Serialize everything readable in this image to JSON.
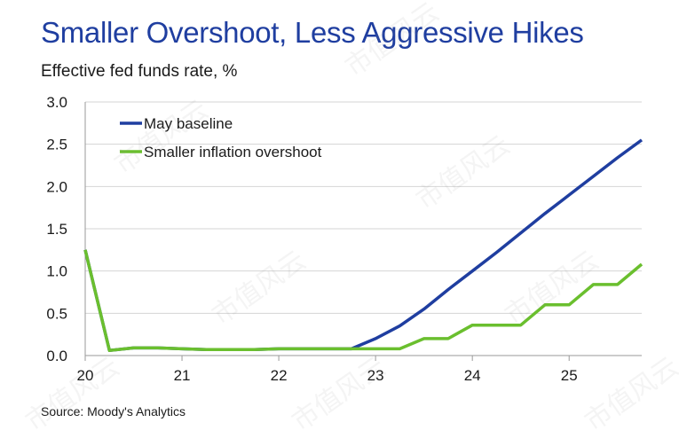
{
  "header": {
    "title": "Smaller Overshoot, Less Aggressive Hikes",
    "subtitle": "Effective fed funds rate, %"
  },
  "footer": {
    "source": "Source: Moody's Analytics"
  },
  "watermark": "市值风云",
  "chart_data": {
    "type": "line",
    "title": "Smaller Overshoot, Less Aggressive Hikes",
    "ylabel": "Effective fed funds rate, %",
    "xlabel": "",
    "xlim": [
      20,
      25.75
    ],
    "ylim": [
      0,
      3.0
    ],
    "x_ticks": [
      "20",
      "21",
      "22",
      "23",
      "24",
      "25"
    ],
    "y_ticks": [
      "0.0",
      "0.5",
      "1.0",
      "1.5",
      "2.0",
      "2.5",
      "3.0"
    ],
    "grid": "horizontal",
    "legend": "top-left",
    "colors": {
      "May baseline": "#1f3ea0",
      "Smaller inflation overshoot": "#6abf2e"
    },
    "series": [
      {
        "name": "May baseline",
        "points": [
          [
            20.0,
            1.25
          ],
          [
            20.25,
            0.06
          ],
          [
            20.5,
            0.09
          ],
          [
            20.75,
            0.09
          ],
          [
            21.0,
            0.08
          ],
          [
            21.25,
            0.07
          ],
          [
            21.5,
            0.07
          ],
          [
            21.75,
            0.07
          ],
          [
            22.0,
            0.08
          ],
          [
            22.25,
            0.08
          ],
          [
            22.5,
            0.08
          ],
          [
            22.75,
            0.08
          ],
          [
            23.0,
            0.2
          ],
          [
            23.25,
            0.35
          ],
          [
            23.5,
            0.55
          ],
          [
            23.75,
            0.78
          ],
          [
            24.0,
            1.0
          ],
          [
            24.25,
            1.22
          ],
          [
            24.5,
            1.45
          ],
          [
            24.75,
            1.68
          ],
          [
            25.0,
            1.9
          ],
          [
            25.25,
            2.12
          ],
          [
            25.5,
            2.34
          ],
          [
            25.75,
            2.55
          ]
        ]
      },
      {
        "name": "Smaller inflation overshoot",
        "points": [
          [
            20.0,
            1.25
          ],
          [
            20.25,
            0.06
          ],
          [
            20.5,
            0.09
          ],
          [
            20.75,
            0.09
          ],
          [
            21.0,
            0.08
          ],
          [
            21.25,
            0.07
          ],
          [
            21.5,
            0.07
          ],
          [
            21.75,
            0.07
          ],
          [
            22.0,
            0.08
          ],
          [
            22.25,
            0.08
          ],
          [
            22.5,
            0.08
          ],
          [
            22.75,
            0.08
          ],
          [
            23.0,
            0.08
          ],
          [
            23.25,
            0.08
          ],
          [
            23.5,
            0.2
          ],
          [
            23.75,
            0.2
          ],
          [
            24.0,
            0.36
          ],
          [
            24.25,
            0.36
          ],
          [
            24.5,
            0.36
          ],
          [
            24.75,
            0.6
          ],
          [
            25.0,
            0.6
          ],
          [
            25.25,
            0.84
          ],
          [
            25.5,
            0.84
          ],
          [
            25.75,
            1.08
          ]
        ]
      }
    ]
  }
}
